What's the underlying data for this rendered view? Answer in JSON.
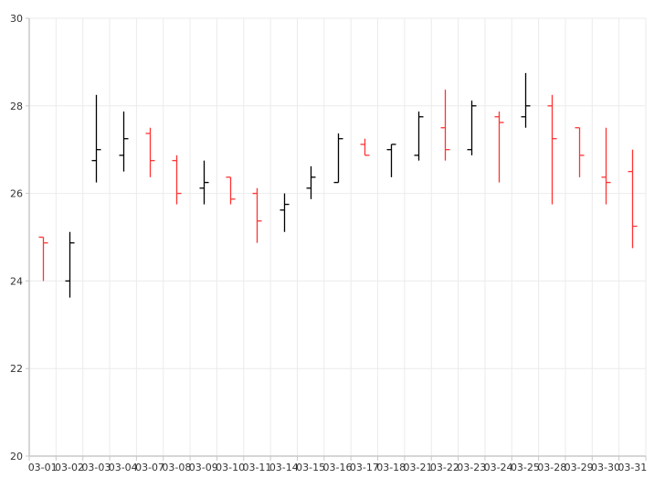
{
  "chart_data": {
    "type": "ohlc",
    "title": "",
    "xlabel": "",
    "ylabel": "",
    "ylim": [
      20,
      30
    ],
    "yticks": [
      20,
      22,
      24,
      26,
      28,
      30
    ],
    "grid": true,
    "legend": "none",
    "colors": {
      "up": "#000000",
      "down": "#ff3333",
      "grid": "#ebebeb",
      "axis": "#c8c8c8"
    },
    "categories": [
      "03-01",
      "03-02",
      "03-03",
      "03-04",
      "03-07",
      "03-08",
      "03-09",
      "03-10",
      "03-11",
      "03-14",
      "03-15",
      "03-16",
      "03-17",
      "03-18",
      "03-21",
      "03-22",
      "03-23",
      "03-24",
      "03-25",
      "03-28",
      "03-29",
      "03-30",
      "03-31"
    ],
    "open": [
      25.0,
      24.0,
      26.75,
      26.87,
      27.37,
      26.75,
      26.12,
      26.37,
      26.0,
      25.62,
      26.12,
      26.25,
      27.12,
      27.0,
      26.87,
      27.5,
      27.0,
      27.75,
      27.75,
      28.0,
      27.5,
      26.37,
      26.5
    ],
    "high": [
      25.0,
      25.12,
      28.25,
      27.87,
      27.5,
      26.87,
      26.75,
      26.37,
      26.12,
      26.0,
      26.62,
      27.37,
      27.25,
      27.12,
      27.87,
      28.37,
      28.12,
      27.87,
      28.75,
      28.25,
      27.5,
      27.5,
      27.0
    ],
    "low": [
      24.0,
      23.62,
      26.25,
      26.5,
      26.37,
      25.75,
      25.75,
      25.75,
      24.87,
      25.12,
      25.87,
      26.25,
      26.87,
      26.37,
      26.75,
      26.75,
      26.87,
      26.25,
      27.5,
      25.75,
      26.37,
      25.75,
      24.75
    ],
    "close": [
      24.87,
      24.87,
      27.0,
      27.25,
      26.75,
      26.0,
      26.25,
      25.87,
      25.37,
      25.75,
      26.37,
      27.25,
      26.87,
      27.12,
      27.75,
      27.0,
      28.0,
      27.62,
      28.0,
      27.25,
      26.87,
      26.25,
      25.25
    ]
  }
}
